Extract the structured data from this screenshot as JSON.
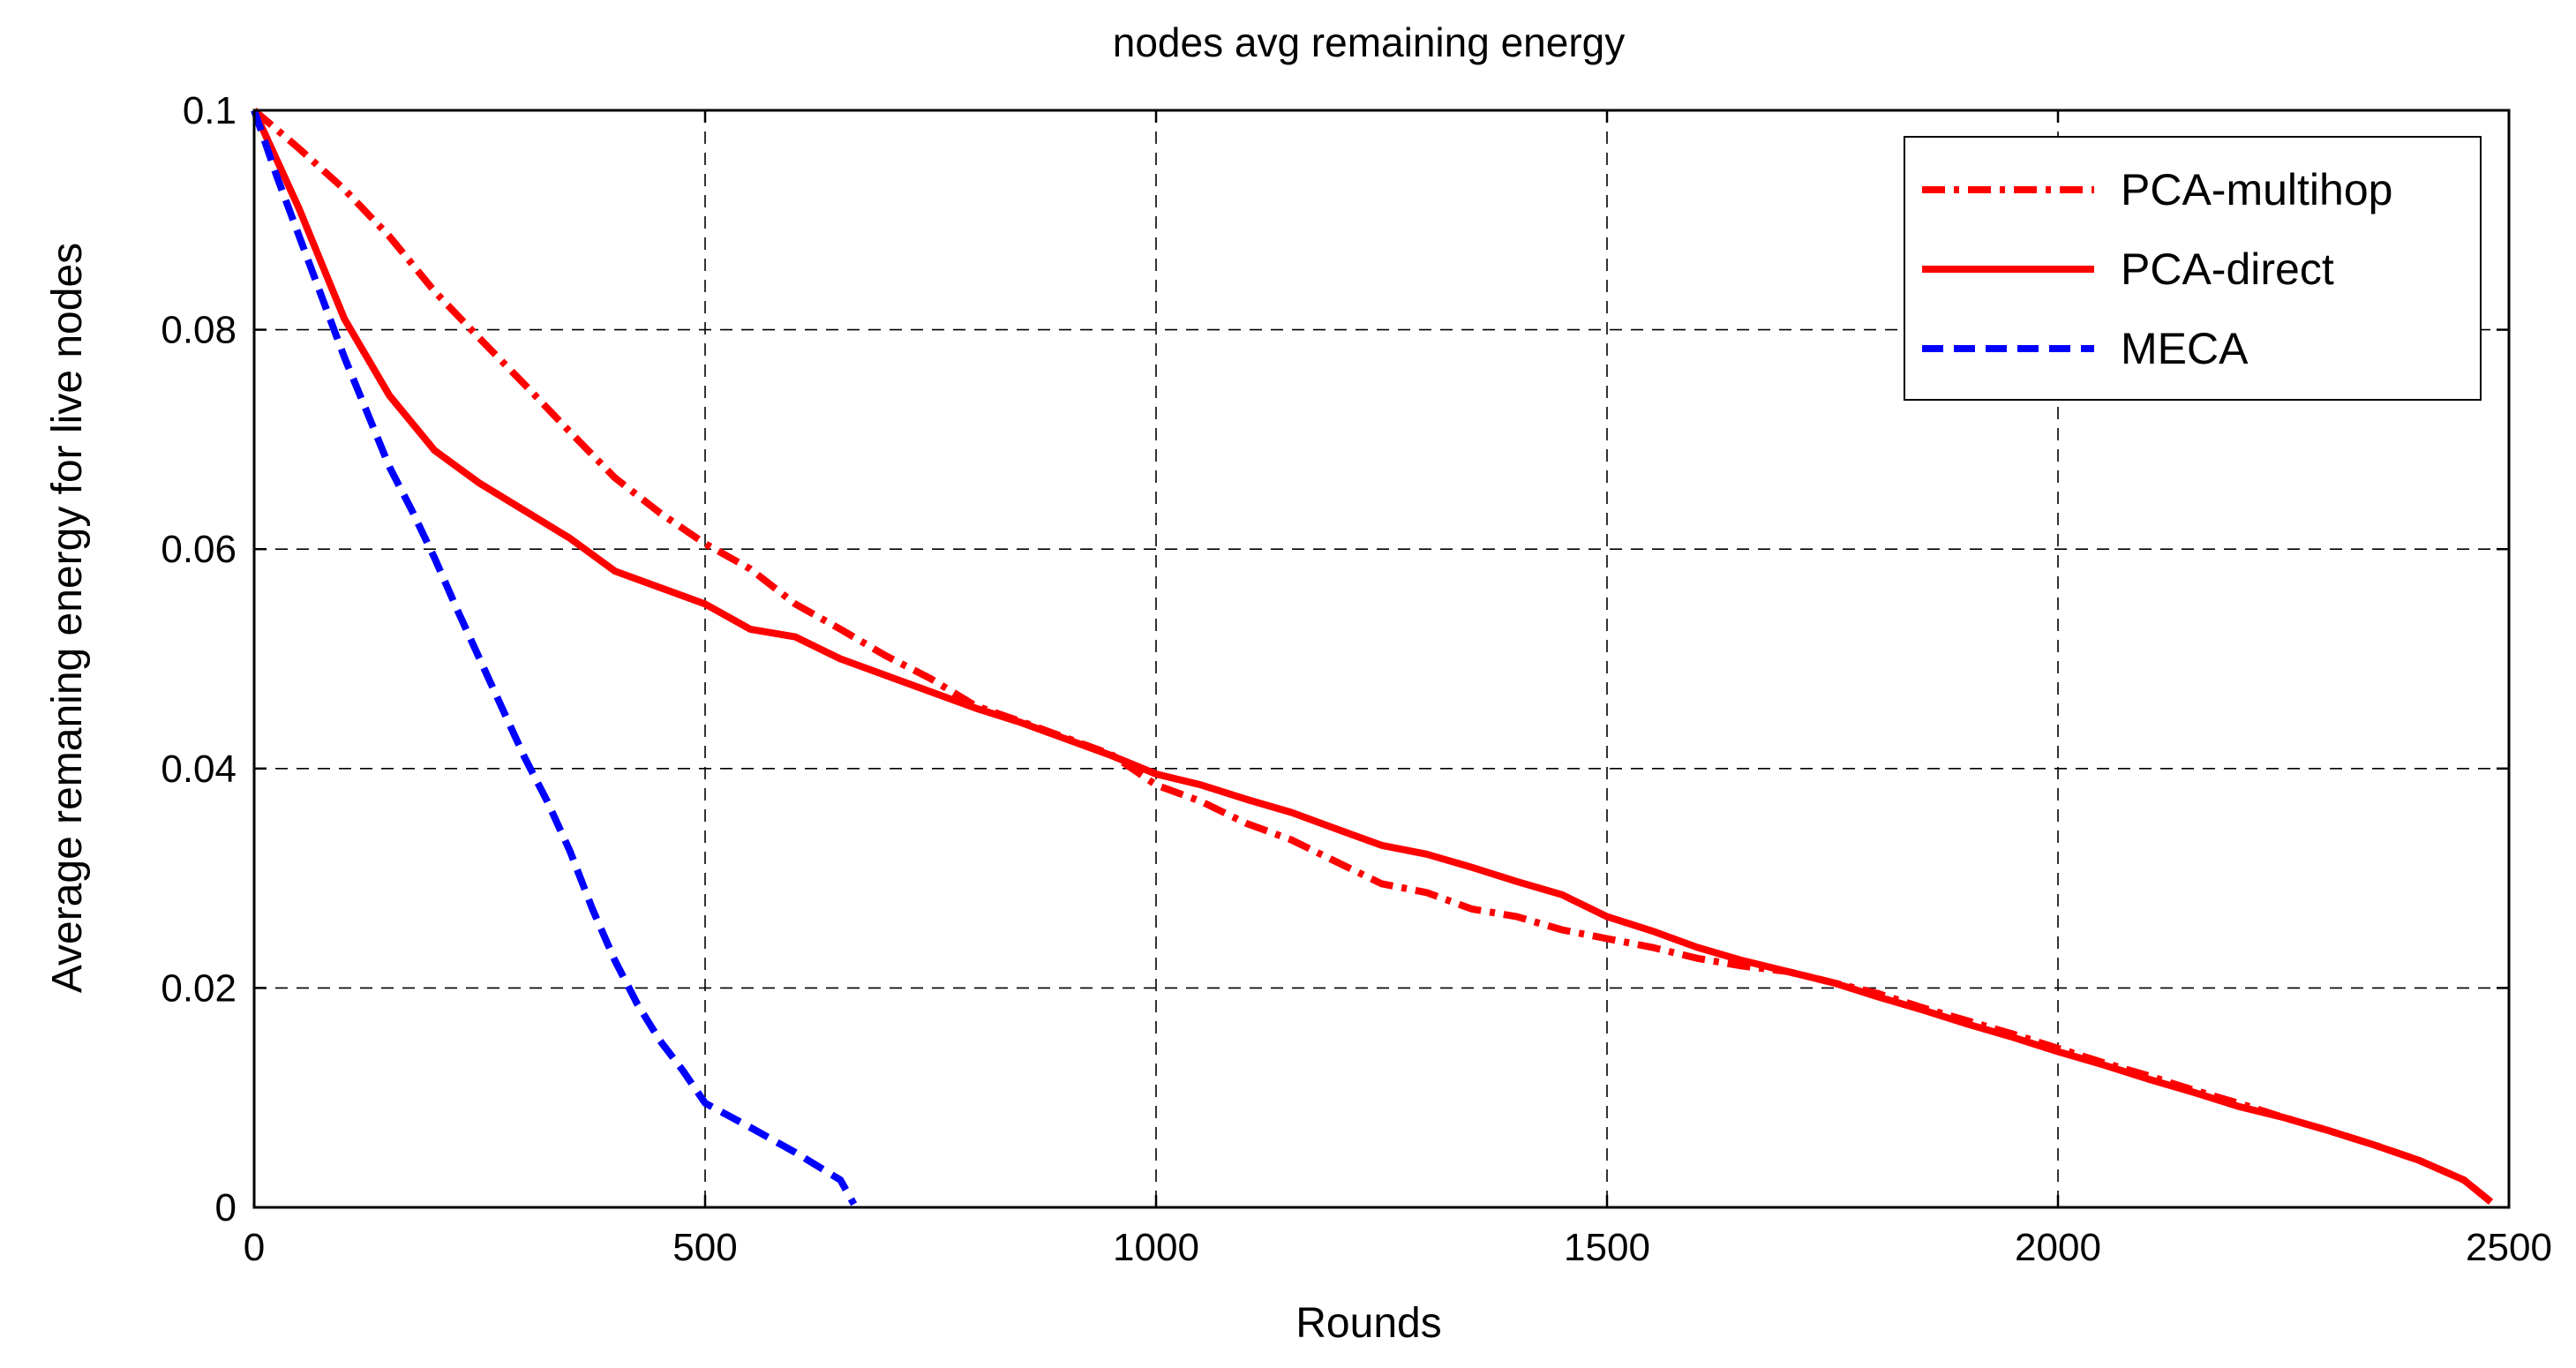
{
  "chart_data": {
    "type": "line",
    "title": "nodes avg remaining energy",
    "xlabel": "Rounds",
    "ylabel": "Average remaning energy  for live nodes",
    "xlim": [
      0,
      2500
    ],
    "ylim": [
      0,
      0.1
    ],
    "xticks": [
      0,
      500,
      1000,
      1500,
      2000,
      2500
    ],
    "xtick_labels": [
      "0",
      "500",
      "1000",
      "1500",
      "2000",
      "2500"
    ],
    "yticks": [
      0,
      0.02,
      0.04,
      0.06,
      0.08,
      0.1
    ],
    "ytick_labels": [
      "0",
      "0.02",
      "0.04",
      "0.06",
      "0.08",
      "0.1"
    ],
    "grid": true,
    "legend_position": "top-right",
    "series": [
      {
        "name": "PCA-multihop",
        "color": "#ff0000",
        "style": "dashdot",
        "x": [
          0,
          50,
          100,
          150,
          200,
          250,
          300,
          350,
          400,
          450,
          500,
          550,
          600,
          650,
          700,
          750,
          800,
          850,
          900,
          950,
          1000,
          1050,
          1100,
          1150,
          1200,
          1250,
          1300,
          1350,
          1400,
          1450,
          1500,
          1550,
          1600,
          1650,
          1700,
          1750,
          1800,
          1850,
          1900,
          1950,
          2000,
          2050,
          2100,
          2150,
          2200,
          2250,
          2300,
          2350,
          2400,
          2450,
          2480
        ],
        "y": [
          0.1,
          0.0965,
          0.0928,
          0.0885,
          0.0835,
          0.0792,
          0.075,
          0.0707,
          0.0665,
          0.0633,
          0.0605,
          0.0582,
          0.055,
          0.0527,
          0.0503,
          0.0482,
          0.0457,
          0.0443,
          0.0428,
          0.0413,
          0.0385,
          0.037,
          0.035,
          0.0335,
          0.0315,
          0.0295,
          0.0287,
          0.0272,
          0.0265,
          0.0253,
          0.0245,
          0.0237,
          0.0227,
          0.022,
          0.0215,
          0.0205,
          0.0195,
          0.0182,
          0.017,
          0.0158,
          0.0145,
          0.0132,
          0.012,
          0.0107,
          0.0095,
          0.0082,
          0.007,
          0.0057,
          0.0043,
          0.0025,
          0.0005
        ]
      },
      {
        "name": "PCA-direct",
        "color": "#ff0000",
        "style": "solid",
        "x": [
          0,
          50,
          100,
          150,
          200,
          250,
          300,
          350,
          400,
          450,
          500,
          550,
          600,
          650,
          700,
          750,
          800,
          850,
          900,
          950,
          1000,
          1050,
          1100,
          1150,
          1200,
          1250,
          1300,
          1350,
          1400,
          1450,
          1500,
          1550,
          1600,
          1650,
          1700,
          1750,
          1800,
          1850,
          1900,
          1950,
          2000,
          2050,
          2100,
          2150,
          2200,
          2250,
          2300,
          2350,
          2400,
          2450,
          2480
        ],
        "y": [
          0.1,
          0.091,
          0.081,
          0.074,
          0.069,
          0.066,
          0.0635,
          0.061,
          0.058,
          0.0565,
          0.055,
          0.0527,
          0.052,
          0.05,
          0.0485,
          0.047,
          0.0455,
          0.0442,
          0.0427,
          0.0412,
          0.0395,
          0.0385,
          0.0372,
          0.036,
          0.0345,
          0.033,
          0.0322,
          0.031,
          0.0297,
          0.0285,
          0.0265,
          0.0252,
          0.0237,
          0.0225,
          0.0215,
          0.0205,
          0.0192,
          0.018,
          0.0167,
          0.0155,
          0.0142,
          0.013,
          0.0117,
          0.0105,
          0.0092,
          0.0082,
          0.007,
          0.0057,
          0.0043,
          0.0025,
          0.0005
        ]
      },
      {
        "name": "MECA",
        "color": "#0000ff",
        "style": "dashed",
        "x": [
          0,
          25,
          50,
          75,
          100,
          125,
          150,
          175,
          200,
          225,
          250,
          275,
          300,
          325,
          350,
          375,
          400,
          425,
          450,
          475,
          500,
          550,
          600,
          650,
          665
        ],
        "y": [
          0.1,
          0.094,
          0.0885,
          0.083,
          0.0775,
          0.0725,
          0.0675,
          0.0635,
          0.0592,
          0.0545,
          0.05,
          0.0455,
          0.041,
          0.037,
          0.0325,
          0.0272,
          0.0225,
          0.0185,
          0.0152,
          0.0125,
          0.0095,
          0.0073,
          0.005,
          0.0025,
          0.0003
        ]
      }
    ]
  }
}
